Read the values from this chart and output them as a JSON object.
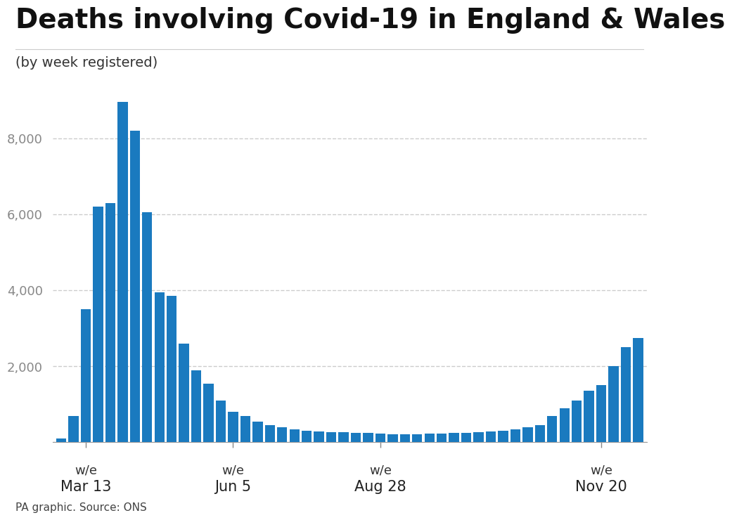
{
  "title": "Deaths involving Covid-19 in England & Wales",
  "subtitle": "(by week registered)",
  "source": "PA graphic. Source: ONS",
  "bar_color": "#1a7abf",
  "background_color": "#ffffff",
  "ytick_values": [
    0,
    2000,
    4000,
    6000,
    8000
  ],
  "ylim": [
    0,
    9500
  ],
  "values": [
    100,
    700,
    3500,
    6200,
    6300,
    8950,
    8200,
    6050,
    3950,
    3850,
    2600,
    1900,
    1550,
    1100,
    800,
    700,
    550,
    450,
    400,
    350,
    310,
    290,
    270,
    260,
    250,
    240,
    230,
    220,
    215,
    220,
    230,
    235,
    240,
    250,
    270,
    290,
    310,
    350,
    400,
    450,
    700,
    900,
    1100,
    1350,
    1500,
    2000,
    2500,
    2750
  ],
  "x_tick_positions": [
    2,
    14,
    26,
    44
  ],
  "x_tick_labels_line1": [
    "w/e",
    "w/e",
    "w/e",
    "w/e"
  ],
  "x_tick_labels_line2": [
    "Mar 13",
    "Jun 5",
    "Aug 28",
    "Nov 20"
  ],
  "title_fontsize": 28,
  "subtitle_fontsize": 14,
  "source_fontsize": 11,
  "ytick_fontsize": 13,
  "xtick_fontsize_line1": 13,
  "xtick_fontsize_line2": 15
}
